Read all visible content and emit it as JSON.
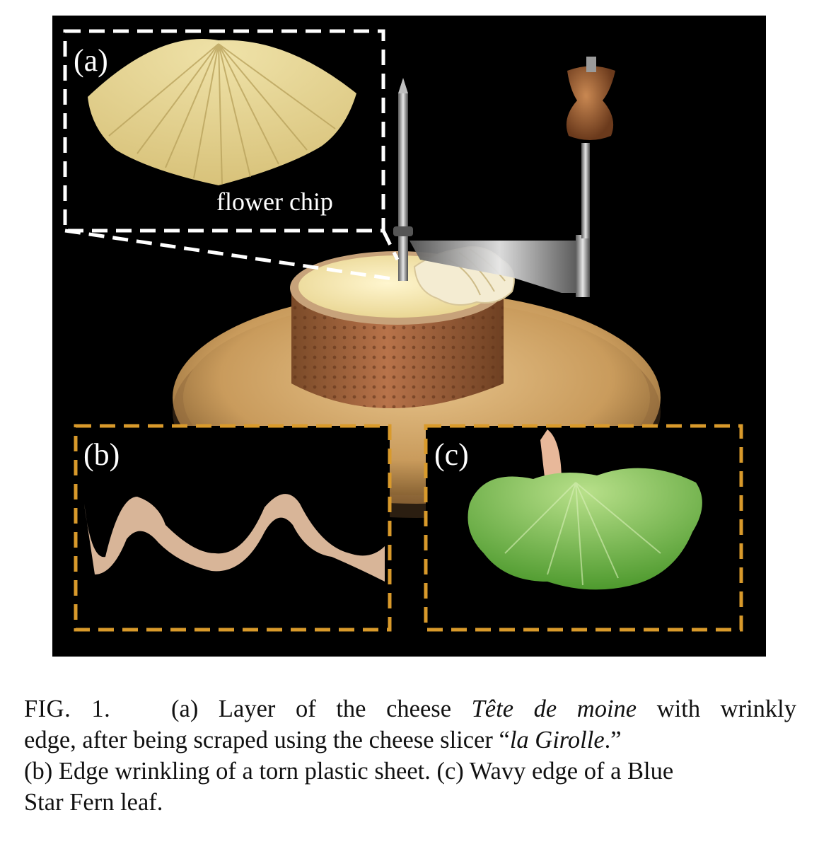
{
  "figure": {
    "panels": {
      "a": {
        "label": "(a)",
        "annotation": "flower chip",
        "frame_color": "#ffffff"
      },
      "b": {
        "label": "(b)",
        "frame_color": "#d99a2b"
      },
      "c": {
        "label": "(c)",
        "frame_color": "#d99a2b"
      }
    }
  },
  "caption": {
    "fig_number": "FIG. 1.",
    "part_a_prefix": "(a) Layer of the cheese ",
    "cheese_name": "Tête de moine",
    "part_a_suffix": " with wrinkly",
    "line2_prefix": "edge, after being scraped using the cheese slicer “",
    "slicer_name": "la Girolle",
    "line2_suffix": ".”",
    "line3": "(b) Edge wrinkling of a torn plastic sheet. (c) Wavy edge of a Blue",
    "line4": "Star Fern leaf."
  }
}
